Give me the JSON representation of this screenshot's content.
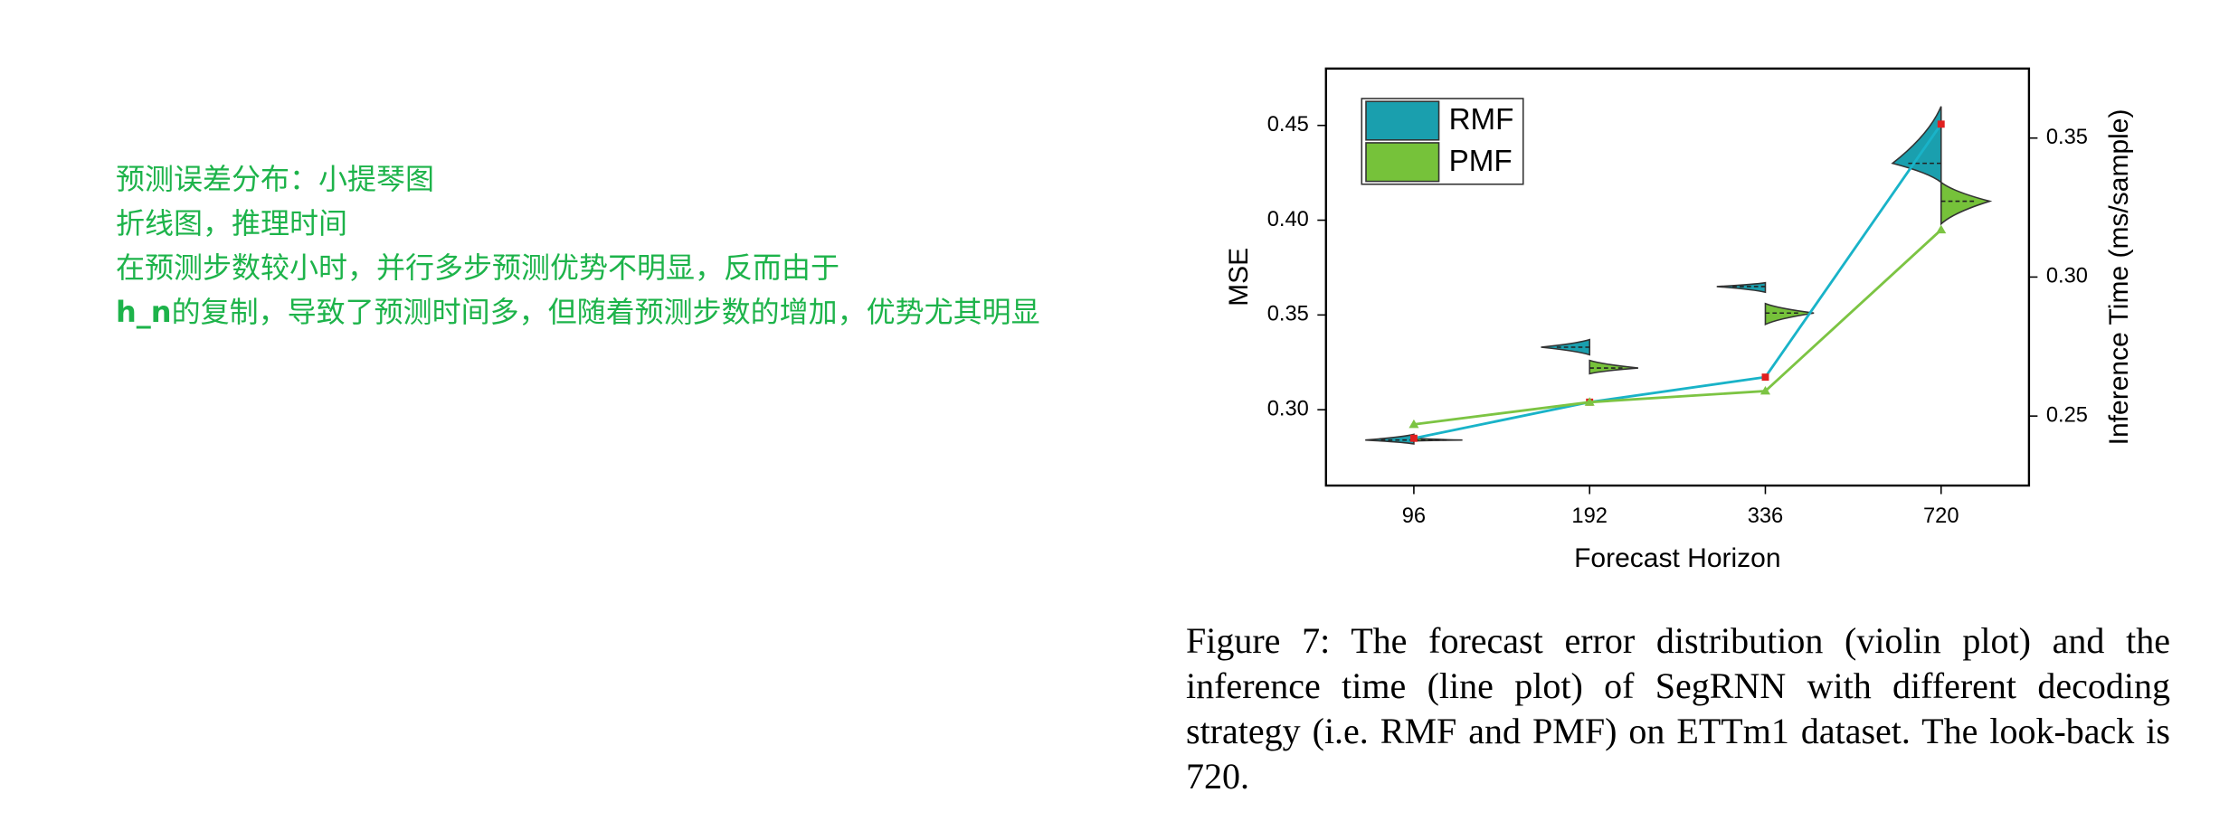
{
  "notes": [
    "预测误差分布：小提琴图",
    "折线图，推理时间",
    "在预测步数较小时，并行多步预测优势不明显，反而由于"
  ],
  "note_bold": "h_n",
  "note_rest": "的复制，导致了预测时间多，但随着预测步数的增加，优势尤其明显",
  "caption": "Figure 7: The forecast error distribution (violin plot) and the inference time (line plot) of SegRNN with different decoding strategy (i.e. RMF and PMF) on ETTm1 dataset. The look-back is 720.",
  "chart_data": {
    "type": "violin",
    "xlabel": "Forecast Horizon",
    "ylabel": "MSE",
    "y2label": "Inference Time (ms/sample)",
    "categories": [
      "96",
      "192",
      "336",
      "720"
    ],
    "ylim": [
      0.26,
      0.48
    ],
    "yticks": [
      {
        "value": 0.3,
        "label": "0.30"
      },
      0.35,
      {
        "value": 0.4,
        "label": "0.40"
      },
      0.45
    ],
    "y2lim": [
      0.225,
      0.375
    ],
    "y2ticks": [
      0.25,
      {
        "value": 0.3,
        "label": "0.30"
      },
      0.35
    ],
    "legend": "upper left",
    "violins": [
      {
        "name": "RMF",
        "color": "#1a9fae",
        "median": [
          0.284,
          0.333,
          0.365,
          0.43
        ],
        "min": [
          0.282,
          0.329,
          0.362,
          0.42
        ],
        "max": [
          0.287,
          0.337,
          0.367,
          0.46
        ]
      },
      {
        "name": "PMF",
        "color": "#76c23a",
        "median": [
          0.284,
          0.322,
          0.351,
          0.41
        ],
        "min": [
          0.2835,
          0.319,
          0.345,
          0.398
        ],
        "max": [
          0.285,
          0.326,
          0.356,
          0.42
        ]
      }
    ],
    "series": [
      {
        "name": "RMF",
        "color": "#19b3c8",
        "marker_color": "#e02020",
        "values": [
          0.242,
          0.255,
          0.264,
          0.355
        ],
        "axis": "y2"
      },
      {
        "name": "PMF",
        "color": "#7cc443",
        "marker_color": "#7cc443",
        "values": [
          0.247,
          0.255,
          0.259,
          0.317
        ],
        "axis": "y2"
      }
    ]
  }
}
